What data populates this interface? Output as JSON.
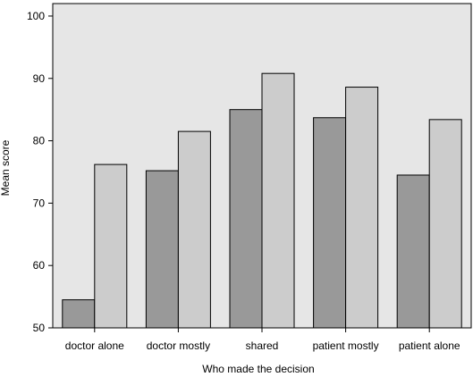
{
  "chart_data": {
    "type": "bar",
    "title": "",
    "xlabel": "Who made the decision",
    "ylabel": "Mean score",
    "ylim": [
      50,
      102
    ],
    "yticks": [
      50,
      60,
      70,
      80,
      90,
      100
    ],
    "grid": false,
    "legend": "none",
    "categories": [
      "doctor alone",
      "doctor mostly",
      "shared",
      "patient mostly",
      "patient alone"
    ],
    "series": [
      {
        "values": [
          54.5,
          75.2,
          85.0,
          83.7,
          74.5
        ]
      },
      {
        "values": [
          76.2,
          81.5,
          90.8,
          88.6,
          83.4
        ]
      }
    ],
    "colors": {
      "plot_background": "#e6e6e6",
      "series": [
        "#999999",
        "#cccccc"
      ],
      "bar_stroke": "#000000"
    }
  }
}
